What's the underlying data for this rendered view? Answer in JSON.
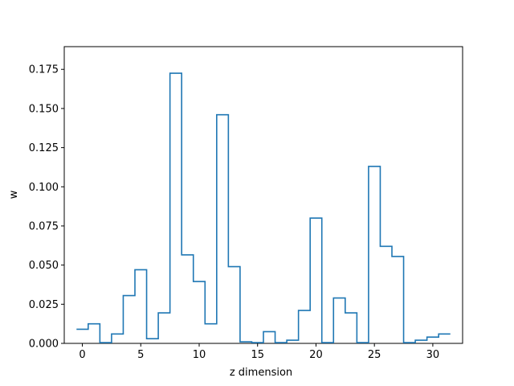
{
  "chart_data": {
    "type": "line",
    "style": "step",
    "x": [
      0,
      1,
      2,
      3,
      4,
      5,
      6,
      7,
      8,
      9,
      10,
      11,
      12,
      13,
      14,
      15,
      16,
      17,
      18,
      19,
      20,
      21,
      22,
      23,
      24,
      25,
      26,
      27,
      28,
      29,
      30,
      31
    ],
    "values": [
      0.009,
      0.0125,
      0.0005,
      0.006,
      0.0305,
      0.047,
      0.003,
      0.0195,
      0.1725,
      0.0565,
      0.0395,
      0.0125,
      0.146,
      0.049,
      0.001,
      0.0005,
      0.0075,
      0.0005,
      0.002,
      0.021,
      0.08,
      0.0005,
      0.029,
      0.0195,
      0.0005,
      0.113,
      0.062,
      0.0555,
      0.0005,
      0.002,
      0.004,
      0.006
    ],
    "title": "",
    "xlabel": "z dimension",
    "ylabel": "w",
    "xlim": [
      -1.55,
      32.55
    ],
    "ylim": [
      0,
      0.1895
    ],
    "xticks": [
      0,
      5,
      10,
      15,
      20,
      25,
      30
    ],
    "xtick_labels": [
      "0",
      "5",
      "10",
      "15",
      "20",
      "25",
      "30"
    ],
    "yticks": [
      0,
      0.025,
      0.05,
      0.075,
      0.1,
      0.125,
      0.15,
      0.175
    ],
    "ytick_labels": [
      "0.000",
      "0.025",
      "0.050",
      "0.075",
      "0.100",
      "0.125",
      "0.150",
      "0.175"
    ],
    "grid": false,
    "line_color": "#1f77b4"
  }
}
